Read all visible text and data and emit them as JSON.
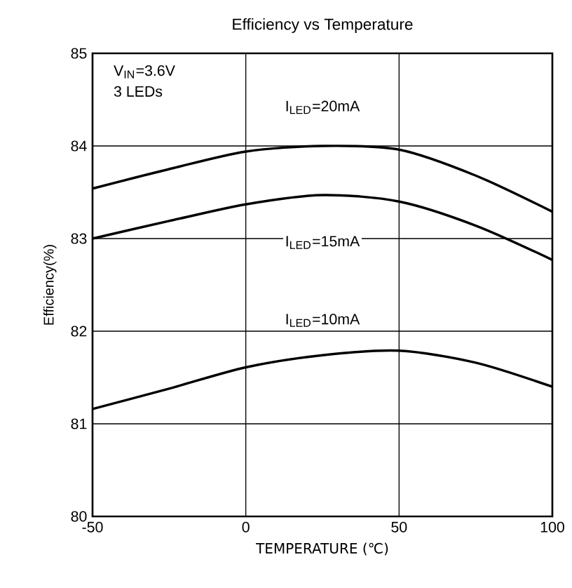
{
  "chart_data": {
    "type": "line",
    "title": "Efficiency vs Temperature",
    "xlabel": "TEMPERATURE (℃)",
    "ylabel": "Efficiency(%)",
    "x": [
      -50,
      -25,
      0,
      25,
      50,
      75,
      100
    ],
    "series": [
      {
        "name": "I$_{LED}$=20mA",
        "color": "#000000",
        "values": [
          83.54,
          83.75,
          83.94,
          84.0,
          83.96,
          83.68,
          83.29
        ]
      },
      {
        "name": "I$_{LED}$=15mA",
        "color": "#000000",
        "values": [
          83.0,
          83.19,
          83.37,
          83.47,
          83.4,
          83.14,
          82.77
        ]
      },
      {
        "name": "I$_{LED}$=10mA",
        "color": "#000000",
        "values": [
          81.16,
          81.38,
          81.61,
          81.74,
          81.79,
          81.66,
          81.4
        ]
      }
    ],
    "xlim": [
      -50,
      100
    ],
    "ylim": [
      80,
      85
    ],
    "xticks": [
      -50,
      0,
      50,
      100
    ],
    "yticks": [
      80,
      81,
      82,
      83,
      84,
      85
    ],
    "grid": true,
    "marker": "none",
    "line_style": "solid",
    "legend": false,
    "annotations": [
      "V$_{IN}$=3.6V",
      "3 LEDs"
    ]
  }
}
